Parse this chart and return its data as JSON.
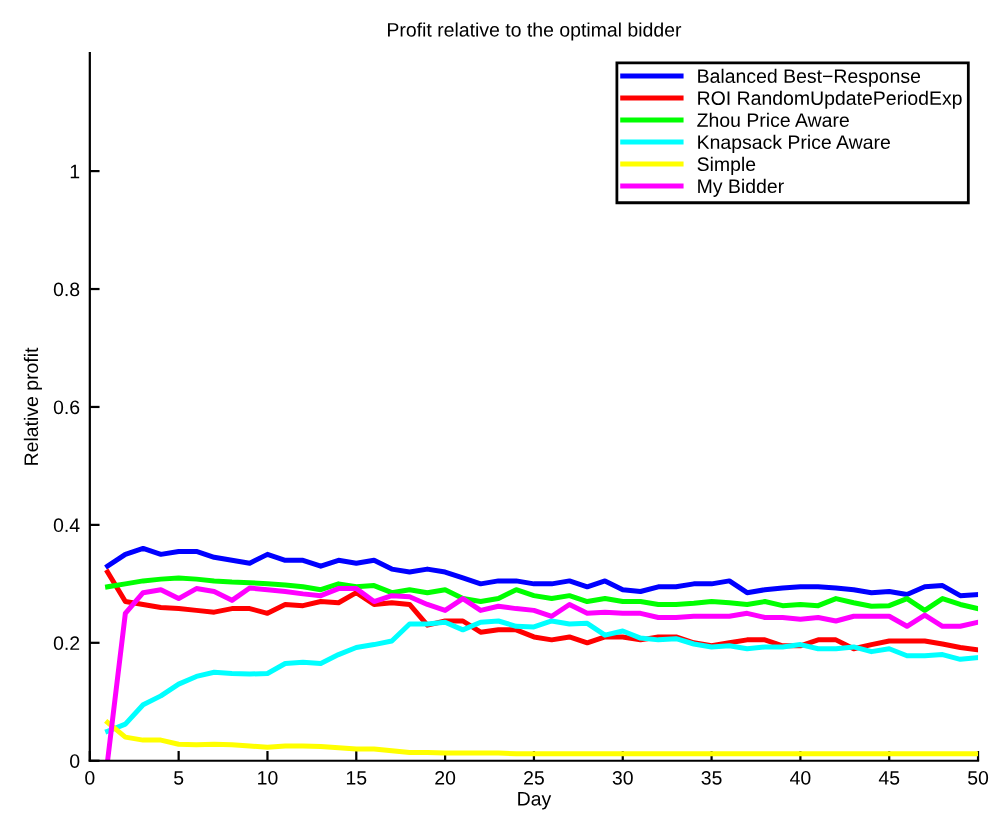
{
  "chart_data": {
    "type": "line",
    "title": "Profit relative to the optimal bidder",
    "xlabel": "Day",
    "ylabel": "Relative profit",
    "x": [
      1,
      2,
      3,
      4,
      5,
      6,
      7,
      8,
      9,
      10,
      11,
      12,
      13,
      14,
      15,
      16,
      17,
      18,
      19,
      20,
      21,
      22,
      23,
      24,
      25,
      26,
      27,
      28,
      29,
      30,
      31,
      32,
      33,
      34,
      35,
      36,
      37,
      38,
      39,
      40,
      41,
      42,
      43,
      44,
      45,
      46,
      47,
      48,
      49,
      50
    ],
    "series": [
      {
        "name": "Balanced Best−Response",
        "color": "#0000ff",
        "values": [
          0.33,
          0.35,
          0.36,
          0.35,
          0.355,
          0.355,
          0.345,
          0.34,
          0.335,
          0.35,
          0.34,
          0.34,
          0.33,
          0.34,
          0.335,
          0.34,
          0.325,
          0.32,
          0.325,
          0.32,
          0.31,
          0.3,
          0.305,
          0.305,
          0.3,
          0.3,
          0.305,
          0.295,
          0.305,
          0.29,
          0.287,
          0.295,
          0.295,
          0.3,
          0.3,
          0.305,
          0.285,
          0.29,
          0.293,
          0.295,
          0.295,
          0.293,
          0.29,
          0.285,
          0.287,
          0.282,
          0.295,
          0.297,
          0.28,
          0.282
        ]
      },
      {
        "name": "ROI RandomUpdatePeriodExp",
        "color": "#ff0000",
        "values": [
          0.32,
          0.27,
          0.265,
          0.26,
          0.258,
          0.255,
          0.252,
          0.258,
          0.258,
          0.25,
          0.265,
          0.263,
          0.27,
          0.268,
          0.285,
          0.265,
          0.268,
          0.265,
          0.23,
          0.237,
          0.237,
          0.218,
          0.222,
          0.222,
          0.21,
          0.205,
          0.21,
          0.2,
          0.21,
          0.21,
          0.205,
          0.21,
          0.21,
          0.2,
          0.195,
          0.2,
          0.205,
          0.205,
          0.195,
          0.195,
          0.205,
          0.205,
          0.19,
          0.197,
          0.203,
          0.203,
          0.203,
          0.198,
          0.192,
          0.188
        ]
      },
      {
        "name": "Zhou Price Aware",
        "color": "#00ff00",
        "values": [
          0.295,
          0.3,
          0.305,
          0.308,
          0.31,
          0.308,
          0.305,
          0.303,
          0.302,
          0.3,
          0.298,
          0.295,
          0.29,
          0.3,
          0.295,
          0.297,
          0.285,
          0.29,
          0.285,
          0.29,
          0.275,
          0.27,
          0.275,
          0.29,
          0.28,
          0.275,
          0.28,
          0.27,
          0.275,
          0.27,
          0.27,
          0.265,
          0.265,
          0.267,
          0.27,
          0.268,
          0.265,
          0.27,
          0.263,
          0.265,
          0.263,
          0.275,
          0.268,
          0.262,
          0.263,
          0.275,
          0.255,
          0.275,
          0.265,
          0.258
        ]
      },
      {
        "name": "Knapsack Price Aware",
        "color": "#00ffff",
        "values": [
          0.05,
          0.062,
          0.095,
          0.11,
          0.13,
          0.143,
          0.15,
          0.148,
          0.147,
          0.148,
          0.165,
          0.167,
          0.165,
          0.18,
          0.192,
          0.197,
          0.203,
          0.232,
          0.232,
          0.235,
          0.222,
          0.235,
          0.237,
          0.228,
          0.227,
          0.237,
          0.232,
          0.233,
          0.213,
          0.22,
          0.208,
          0.205,
          0.207,
          0.198,
          0.193,
          0.195,
          0.19,
          0.193,
          0.193,
          0.197,
          0.19,
          0.19,
          0.193,
          0.185,
          0.19,
          0.178,
          0.178,
          0.18,
          0.172,
          0.175
        ]
      },
      {
        "name": "Simple",
        "color": "#ffff00",
        "values": [
          0.065,
          0.04,
          0.035,
          0.035,
          0.028,
          0.027,
          0.028,
          0.027,
          0.025,
          0.023,
          0.025,
          0.025,
          0.024,
          0.022,
          0.02,
          0.02,
          0.017,
          0.014,
          0.014,
          0.013,
          0.013,
          0.013,
          0.013,
          0.012,
          0.012,
          0.012,
          0.012,
          0.012,
          0.012,
          0.012,
          0.012,
          0.012,
          0.012,
          0.012,
          0.012,
          0.012,
          0.012,
          0.012,
          0.012,
          0.012,
          0.012,
          0.012,
          0.012,
          0.012,
          0.012,
          0.012,
          0.012,
          0.012,
          0.012,
          0.012
        ]
      },
      {
        "name": "My Bidder",
        "color": "#ff00ff",
        "values": [
          0.0,
          0.25,
          0.285,
          0.29,
          0.275,
          0.292,
          0.287,
          0.272,
          0.293,
          0.29,
          0.287,
          0.283,
          0.28,
          0.292,
          0.292,
          0.27,
          0.28,
          0.278,
          0.265,
          0.255,
          0.275,
          0.255,
          0.262,
          0.258,
          0.255,
          0.245,
          0.265,
          0.25,
          0.252,
          0.25,
          0.25,
          0.243,
          0.243,
          0.245,
          0.245,
          0.245,
          0.25,
          0.243,
          0.243,
          0.24,
          0.243,
          0.237,
          0.245,
          0.245,
          0.245,
          0.228,
          0.247,
          0.228,
          0.228,
          0.235
        ]
      }
    ],
    "xlim": [
      0,
      50
    ],
    "ylim": [
      0,
      1.2
    ],
    "xticks": [
      0,
      5,
      10,
      15,
      20,
      25,
      30,
      35,
      40,
      45,
      50
    ],
    "yticks": [
      0,
      0.2,
      0.4,
      0.6,
      0.8,
      1
    ],
    "legend": "top right",
    "grid": false,
    "marker": "none",
    "line_style": "solid"
  }
}
